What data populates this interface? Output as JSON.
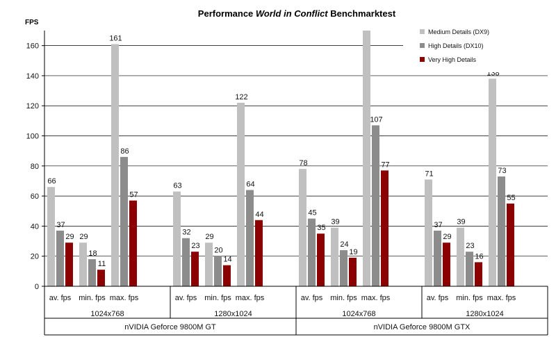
{
  "chart_data": {
    "type": "bar",
    "title_prefix": "Performance ",
    "title_italic": "World in Conflict",
    "title_suffix": " Benchmarktest",
    "ylabel": "FPS",
    "ylim": [
      0,
      170
    ],
    "yticks": [
      0,
      20,
      40,
      60,
      80,
      100,
      120,
      140,
      160
    ],
    "grid": true,
    "legend_position": "top-right",
    "series": [
      {
        "name": "Medium Details (DX9)",
        "color": "#c0c0c0"
      },
      {
        "name": "High Details (DX10)",
        "color": "#8c8c8c"
      },
      {
        "name": "Very High Details",
        "color": "#8b0000"
      }
    ],
    "gpus": [
      {
        "name": "nVIDIA Geforce 9800M GT",
        "resolutions": [
          {
            "name": "1024x768",
            "groups": [
              {
                "label": "av. fps",
                "values": [
                  66,
                  37,
                  29
                ]
              },
              {
                "label": "min. fps",
                "values": [
                  29,
                  18,
                  11
                ]
              },
              {
                "label": "max. fps",
                "values": [
                  161,
                  86,
                  57
                ]
              }
            ]
          },
          {
            "name": "1280x1024",
            "groups": [
              {
                "label": "av. fps",
                "values": [
                  63,
                  32,
                  23
                ]
              },
              {
                "label": "min. fps",
                "values": [
                  29,
                  20,
                  14
                ]
              },
              {
                "label": "max. fps",
                "values": [
                  122,
                  64,
                  44
                ]
              }
            ]
          }
        ]
      },
      {
        "name": "nVIDIA Geforce 9800M GTX",
        "resolutions": [
          {
            "name": "1024x768",
            "groups": [
              {
                "label": "av. fps",
                "values": [
                  78,
                  45,
                  35
                ]
              },
              {
                "label": "min. fps",
                "values": [
                  39,
                  24,
                  19
                ]
              },
              {
                "label": "max. fps",
                "values": [
                  172,
                  107,
                  77
                ],
                "labels": [
                  "",
                  "107",
                  "77"
                ]
              }
            ]
          },
          {
            "name": "1280x1024",
            "groups": [
              {
                "label": "av. fps",
                "values": [
                  71,
                  37,
                  29
                ]
              },
              {
                "label": "min. fps",
                "values": [
                  39,
                  23,
                  16
                ]
              },
              {
                "label": "max. fps",
                "values": [
                  138,
                  73,
                  55
                ]
              }
            ]
          }
        ]
      }
    ]
  }
}
